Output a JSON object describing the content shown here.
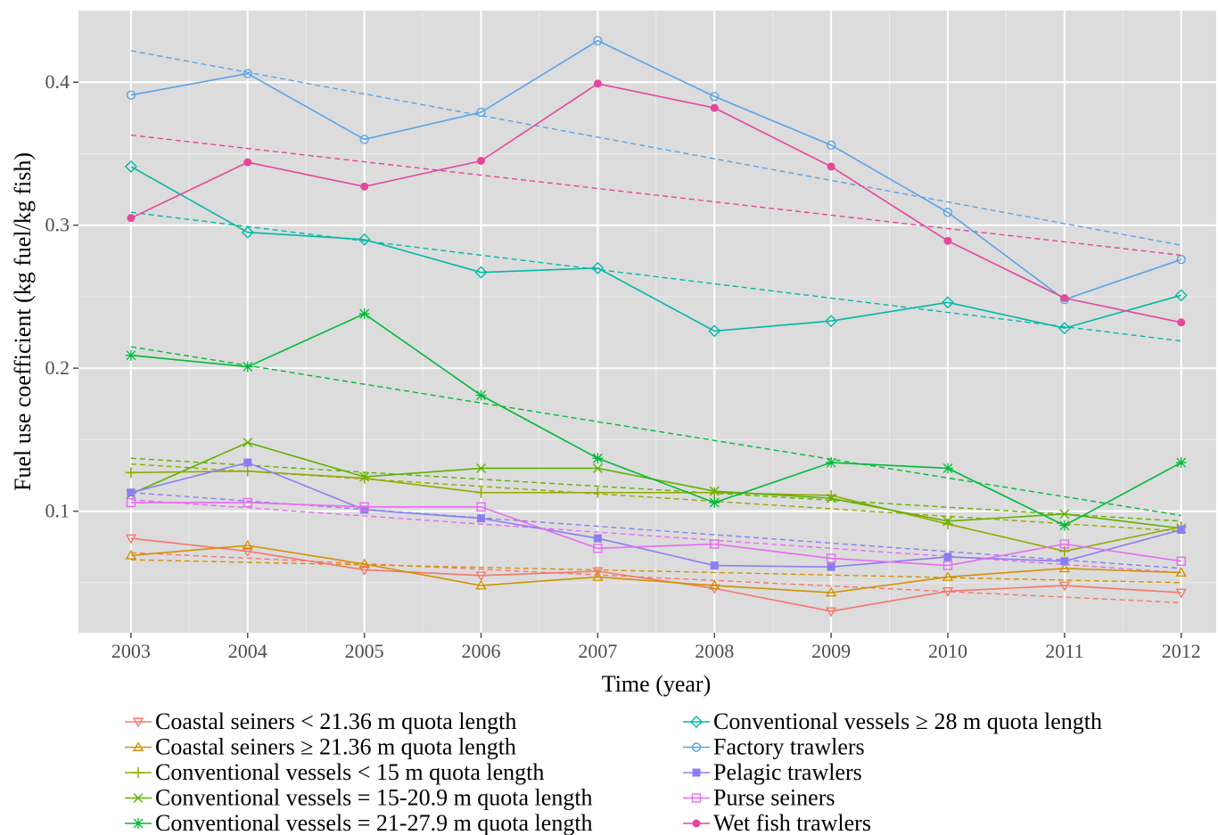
{
  "chart_data": {
    "type": "line",
    "title": "",
    "xlabel": "Time (year)",
    "ylabel": "Fuel use coefficient (kg fuel/kg fish)",
    "x": [
      2003,
      2004,
      2005,
      2006,
      2007,
      2008,
      2009,
      2010,
      2011,
      2012
    ],
    "x_ticks": [
      "2003",
      "2004",
      "2005",
      "2006",
      "2007",
      "2008",
      "2009",
      "2010",
      "2011",
      "2012"
    ],
    "y_ticks": [
      "0.1",
      "0.2",
      "0.3",
      "0.4"
    ],
    "y_tick_values": [
      0.1,
      0.2,
      0.3,
      0.4
    ],
    "xlim": [
      2002.55,
      2012.3
    ],
    "ylim": [
      0.015,
      0.45
    ],
    "grid": true,
    "trend_lines": "dashed linear fit per series",
    "legend_position": "bottom",
    "series": [
      {
        "name": "Coastal seiners < 21.36 m quota length",
        "color": "#f8766d",
        "marker": "triangle-down-open",
        "values": [
          0.081,
          0.072,
          0.059,
          0.055,
          0.058,
          0.046,
          0.03,
          0.044,
          0.048,
          0.043
        ],
        "trend": [
          0.071,
          0.036
        ]
      },
      {
        "name": "Coastal seiners  ≥ 21.36 m quota length",
        "color": "#d39200",
        "marker": "triangle-up-open",
        "values": [
          0.069,
          0.076,
          0.063,
          0.048,
          0.054,
          0.048,
          0.043,
          0.054,
          0.06,
          0.057
        ],
        "trend": [
          0.066,
          0.05
        ]
      },
      {
        "name": "Conventional vessels < 15 m quota length",
        "color": "#93aa00",
        "marker": "plus",
        "values": [
          0.127,
          0.128,
          0.123,
          0.113,
          0.113,
          0.113,
          0.111,
          0.091,
          0.072,
          0.089
        ],
        "trend": [
          0.133,
          0.086
        ]
      },
      {
        "name": "Conventional vessels = 15-20.9 m quota length",
        "color": "#5eb300",
        "marker": "cross",
        "values": [
          0.112,
          0.148,
          0.124,
          0.13,
          0.13,
          0.114,
          0.109,
          0.093,
          0.098,
          0.088
        ],
        "trend": [
          0.137,
          0.093
        ]
      },
      {
        "name": "Conventional vessels = 21-27.9 m quota length",
        "color": "#00ba38",
        "marker": "asterisk",
        "values": [
          0.209,
          0.201,
          0.238,
          0.181,
          0.137,
          0.106,
          0.134,
          0.13,
          0.09,
          0.134
        ],
        "trend": [
          0.215,
          0.097
        ]
      },
      {
        "name": "Conventional vessels  ≥ 28 m quota length",
        "color": "#00b9a6",
        "marker": "diamond-open",
        "values": [
          0.341,
          0.295,
          0.29,
          0.267,
          0.27,
          0.226,
          0.233,
          0.246,
          0.228,
          0.251
        ],
        "trend": [
          0.309,
          0.219
        ]
      },
      {
        "name": "Factory trawlers",
        "color": "#5aa3e8",
        "marker": "circle-open",
        "values": [
          0.391,
          0.406,
          0.36,
          0.379,
          0.429,
          0.39,
          0.356,
          0.309,
          0.248,
          0.276
        ],
        "trend": [
          0.422,
          0.286
        ]
      },
      {
        "name": "Pelagic trawlers",
        "color": "#8b7ef4",
        "marker": "square-filled",
        "values": [
          0.113,
          0.134,
          0.101,
          0.095,
          0.081,
          0.062,
          0.061,
          0.068,
          0.065,
          0.087
        ],
        "trend": [
          0.113,
          0.06
        ]
      },
      {
        "name": "Purse seiners",
        "color": "#e76bf3",
        "marker": "square-open",
        "values": [
          0.106,
          0.106,
          0.103,
          0.103,
          0.074,
          0.077,
          0.067,
          0.062,
          0.077,
          0.065
        ],
        "trend": [
          0.108,
          0.057
        ]
      },
      {
        "name": "Wet fish trawlers",
        "color": "#e4469b",
        "marker": "circle-filled",
        "values": [
          0.305,
          0.344,
          0.327,
          0.345,
          0.399,
          0.382,
          0.341,
          0.289,
          0.249,
          0.232
        ],
        "trend": [
          0.363,
          0.279
        ]
      }
    ]
  }
}
